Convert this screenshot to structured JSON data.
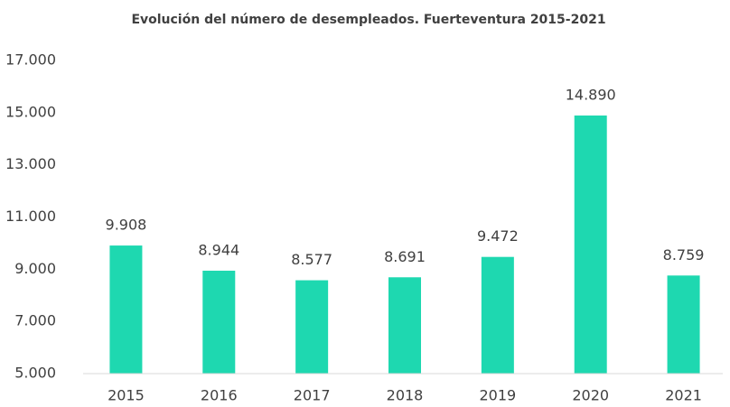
{
  "chart_data": {
    "type": "bar",
    "title": "Evolución del número de desempleados. Fuerteventura 2015-2021",
    "categories": [
      "2015",
      "2016",
      "2017",
      "2018",
      "2019",
      "2020",
      "2021"
    ],
    "values": [
      9908,
      8944,
      8577,
      8691,
      9472,
      14890,
      8759
    ],
    "value_labels": [
      "9.908",
      "8.944",
      "8.577",
      "8.691",
      "9.472",
      "14.890",
      "8.759"
    ],
    "color": "#1ed8b0",
    "ylim": [
      5000,
      17000
    ],
    "yticks": [
      {
        "value": 5000,
        "label": "5.000"
      },
      {
        "value": 7000,
        "label": "7.000"
      },
      {
        "value": 9000,
        "label": "9.000"
      },
      {
        "value": 11000,
        "label": "11.000"
      },
      {
        "value": 13000,
        "label": "13.000"
      },
      {
        "value": 15000,
        "label": "15.000"
      },
      {
        "value": 17000,
        "label": "17.000"
      }
    ],
    "grid": false
  }
}
